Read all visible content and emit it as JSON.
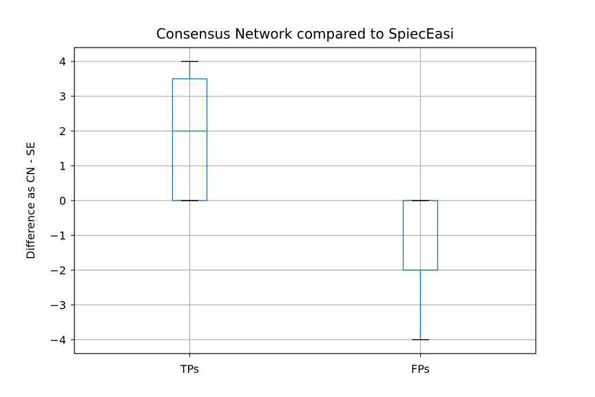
{
  "chart_data": {
    "type": "box",
    "title": "Consensus Network compared to SpiecEasi",
    "xlabel": "",
    "ylabel": "Difference as CN - SE",
    "ylim": [
      -4.4,
      4.4
    ],
    "yticks": [
      -4,
      -3,
      -2,
      -1,
      0,
      1,
      2,
      3,
      4
    ],
    "ytick_labels": [
      "−4",
      "−3",
      "−2",
      "−1",
      "0",
      "1",
      "2",
      "3",
      "4"
    ],
    "categories": [
      "TPs",
      "FPs"
    ],
    "grid": true,
    "boxes": [
      {
        "category": "TPs",
        "whisker_low": 0,
        "q1": 0,
        "median": 2,
        "q3": 3.5,
        "whisker_high": 4
      },
      {
        "category": "FPs",
        "whisker_low": -4,
        "q1": -2,
        "median": -2,
        "q3": 0,
        "whisker_high": 0
      }
    ],
    "colors": {
      "box": "#1f77b4",
      "median": "#2ca02c",
      "whisker_cap": "#000000",
      "grid": "#b0b0b0"
    }
  }
}
